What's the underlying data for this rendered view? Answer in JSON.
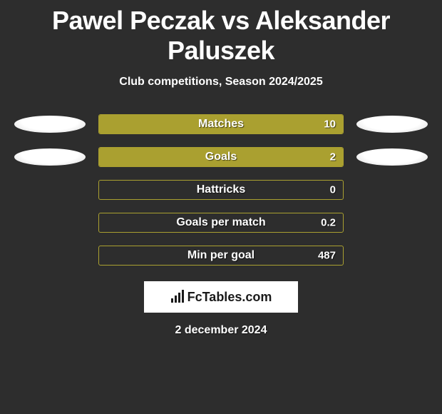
{
  "header": {
    "title": "Pawel Peczak vs Aleksander Paluszek",
    "subtitle": "Club competitions, Season 2024/2025"
  },
  "colors": {
    "background": "#2d2d2d",
    "bar_fill": "#aaa030",
    "bar_border": "#aaa030",
    "text": "#ffffff",
    "brand_bg": "#ffffff",
    "brand_text": "#1a1a1a"
  },
  "layout": {
    "bar_track_width": 344,
    "bar_track_height": 28,
    "avatar_width": 100,
    "avatar_height": 24,
    "row_gap": 18
  },
  "stats": [
    {
      "label": "Matches",
      "value": "10",
      "fill_pct": 100,
      "left_avatar": true,
      "right_avatar": true
    },
    {
      "label": "Goals",
      "value": "2",
      "fill_pct": 100,
      "left_avatar": true,
      "right_avatar": true
    },
    {
      "label": "Hattricks",
      "value": "0",
      "fill_pct": 0,
      "left_avatar": false,
      "right_avatar": false
    },
    {
      "label": "Goals per match",
      "value": "0.2",
      "fill_pct": 0,
      "left_avatar": false,
      "right_avatar": false
    },
    {
      "label": "Min per goal",
      "value": "487",
      "fill_pct": 0,
      "left_avatar": false,
      "right_avatar": false
    }
  ],
  "brand": {
    "icon": "bars-icon",
    "text": "FcTables.com"
  },
  "footer": {
    "date": "2 december 2024"
  }
}
